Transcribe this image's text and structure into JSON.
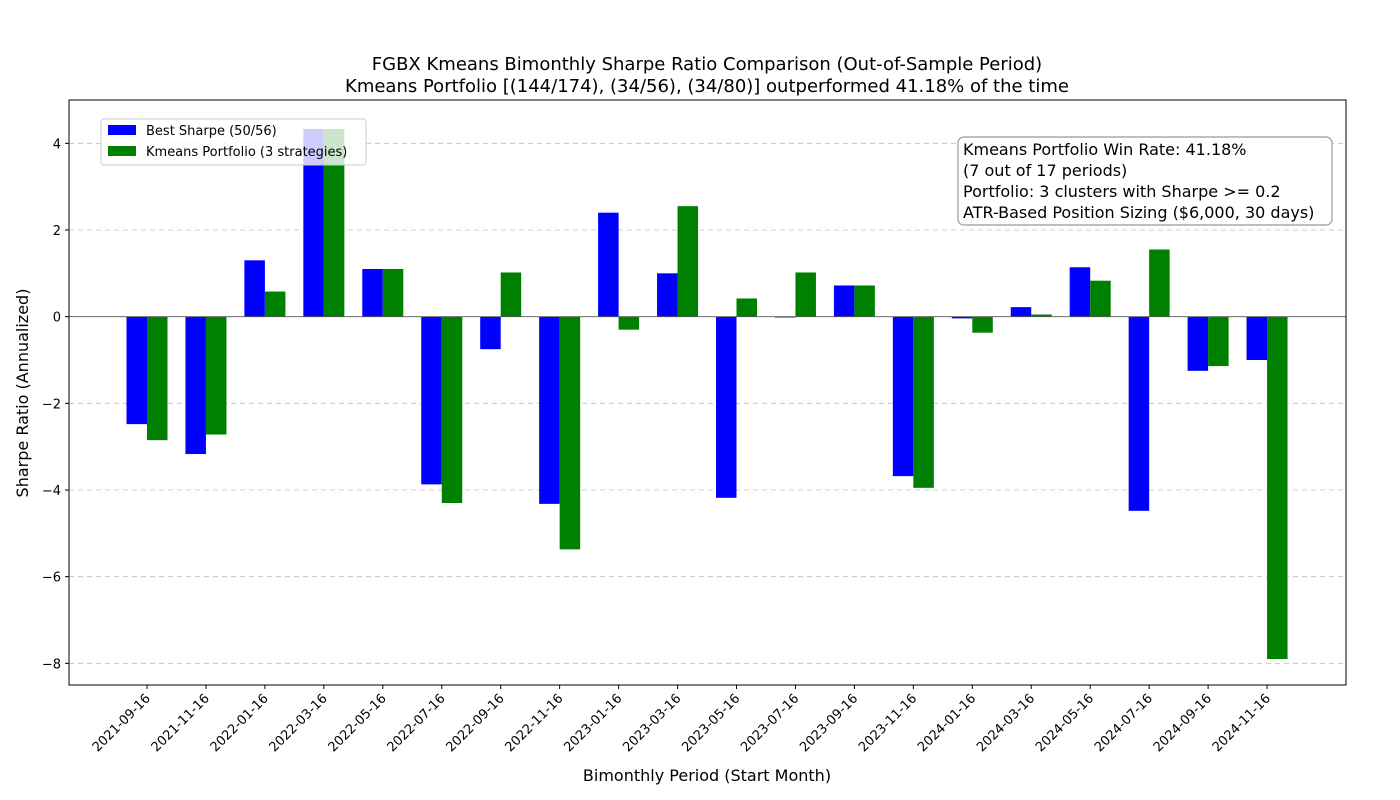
{
  "chart_data": {
    "type": "bar",
    "title_line1": "FGBX Kmeans Bimonthly Sharpe Ratio Comparison (Out-of-Sample Period)",
    "title_line2": "Kmeans Portfolio [(144/174), (34/56), (34/80)] outperformed 41.18% of the time",
    "xlabel": "Bimonthly Period (Start Month)",
    "ylabel": "Sharpe Ratio (Annualized)",
    "ylim": [
      -8.5,
      5.0
    ],
    "yticks": [
      4,
      2,
      0,
      -2,
      -4,
      -6,
      -8
    ],
    "ytick_labels": [
      "4",
      "2",
      "0",
      "−2",
      "−4",
      "−6",
      "−8"
    ],
    "grid": "y-dashed",
    "legend_placement": "top-left",
    "categories": [
      "2021-09-16",
      "2021-11-16",
      "2022-01-16",
      "2022-03-16",
      "2022-05-16",
      "2022-07-16",
      "2022-09-16",
      "2022-11-16",
      "2023-01-16",
      "2023-03-16",
      "2023-05-16",
      "2023-07-16",
      "2023-09-16",
      "2023-11-16",
      "2024-01-16",
      "2024-03-16",
      "2024-05-16",
      "2024-07-16",
      "2024-09-16",
      "2024-11-16"
    ],
    "series": [
      {
        "name": "Best Sharpe (50/56)",
        "color": "#0000ff",
        "values": [
          -2.48,
          -3.17,
          1.3,
          4.33,
          1.1,
          -3.87,
          -0.75,
          -4.32,
          2.4,
          1.0,
          -4.18,
          -0.02,
          0.72,
          -3.68,
          -0.04,
          0.22,
          1.14,
          -4.48,
          -1.25,
          -1.0
        ]
      },
      {
        "name": "Kmeans Portfolio (3 strategies)",
        "color": "#008000",
        "values": [
          -2.85,
          -2.72,
          0.58,
          4.33,
          1.1,
          -4.3,
          1.02,
          -5.37,
          -0.3,
          2.55,
          0.42,
          1.02,
          0.72,
          -3.95,
          -0.37,
          0.05,
          0.83,
          1.55,
          -1.14,
          -7.9
        ]
      }
    ],
    "annotation_lines": [
      "Kmeans Portfolio Win Rate: 41.18%",
      "(7 out of 17 periods)",
      "Portfolio: 3 clusters with Sharpe >= 0.2",
      "ATR-Based Position Sizing ($6,000, 30 days)"
    ]
  }
}
